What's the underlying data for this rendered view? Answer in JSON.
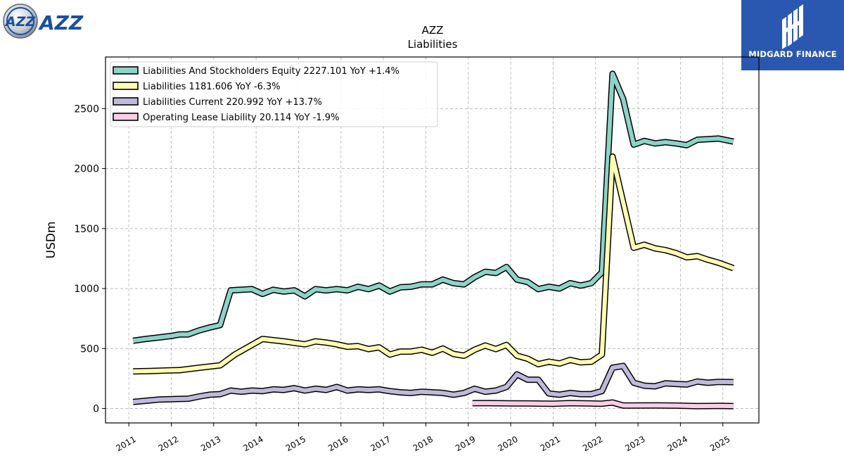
{
  "header": {
    "left_logo_text": "AZZ",
    "left_logo_emblem": "AZZ",
    "right_logo_text": "MIDGARD FINANCE"
  },
  "colors": {
    "equity": "#8dd3c7",
    "liabilities": "#ffffb3",
    "current": "#bebada",
    "lease": "#fccde5",
    "right_logo_bg": "#2a57b0",
    "left_logo_blue": "#1b4f9c"
  },
  "chart_data": {
    "type": "line",
    "title": "AZZ",
    "subtitle": "Liabilities",
    "ylabel": "USDm",
    "xlabel": "",
    "xlim": [
      2010.45,
      2025.85
    ],
    "ylim": [
      -120,
      2930
    ],
    "yticks": [
      0,
      500,
      1000,
      1500,
      2000,
      2500
    ],
    "xticks": [
      2011,
      2012,
      2013,
      2014,
      2015,
      2016,
      2017,
      2018,
      2019,
      2020,
      2021,
      2022,
      2023,
      2024,
      2025
    ],
    "grid": true,
    "legend_position": "top-left",
    "series": [
      {
        "name": "Liabilities And Stockholders Equity",
        "legend": "Liabilities And Stockholders Equity  2227.101 YoY +1.4%",
        "color_key": "equity",
        "points": [
          [
            2011.1,
            565
          ],
          [
            2011.4,
            580
          ],
          [
            2011.7,
            592
          ],
          [
            2012.0,
            605
          ],
          [
            2012.2,
            618
          ],
          [
            2012.4,
            618
          ],
          [
            2012.65,
            650
          ],
          [
            2012.9,
            675
          ],
          [
            2013.15,
            695
          ],
          [
            2013.4,
            985
          ],
          [
            2013.65,
            990
          ],
          [
            2013.9,
            995
          ],
          [
            2014.15,
            955
          ],
          [
            2014.4,
            990
          ],
          [
            2014.65,
            975
          ],
          [
            2014.9,
            985
          ],
          [
            2015.15,
            935
          ],
          [
            2015.4,
            995
          ],
          [
            2015.65,
            985
          ],
          [
            2015.9,
            995
          ],
          [
            2016.15,
            985
          ],
          [
            2016.4,
            1015
          ],
          [
            2016.65,
            995
          ],
          [
            2016.9,
            1025
          ],
          [
            2017.15,
            975
          ],
          [
            2017.4,
            1010
          ],
          [
            2017.65,
            1015
          ],
          [
            2017.9,
            1035
          ],
          [
            2018.15,
            1035
          ],
          [
            2018.4,
            1075
          ],
          [
            2018.65,
            1045
          ],
          [
            2018.9,
            1035
          ],
          [
            2019.15,
            1095
          ],
          [
            2019.4,
            1140
          ],
          [
            2019.65,
            1130
          ],
          [
            2019.9,
            1180
          ],
          [
            2020.15,
            1075
          ],
          [
            2020.4,
            1055
          ],
          [
            2020.65,
            995
          ],
          [
            2020.9,
            1015
          ],
          [
            2021.15,
            1000
          ],
          [
            2021.4,
            1045
          ],
          [
            2021.65,
            1025
          ],
          [
            2021.9,
            1045
          ],
          [
            2022.15,
            1135
          ],
          [
            2022.4,
            2790
          ],
          [
            2022.65,
            2580
          ],
          [
            2022.9,
            2200
          ],
          [
            2023.15,
            2230
          ],
          [
            2023.4,
            2210
          ],
          [
            2023.65,
            2220
          ],
          [
            2023.9,
            2210
          ],
          [
            2024.15,
            2195
          ],
          [
            2024.4,
            2240
          ],
          [
            2024.65,
            2245
          ],
          [
            2024.9,
            2250
          ],
          [
            2025.25,
            2225
          ]
        ]
      },
      {
        "name": "Liabilities",
        "legend": "Liabilities  1181.606 YoY -6.3%",
        "color_key": "liabilities",
        "points": [
          [
            2011.1,
            310
          ],
          [
            2011.5,
            313
          ],
          [
            2012.0,
            318
          ],
          [
            2012.2,
            320
          ],
          [
            2012.65,
            340
          ],
          [
            2013.15,
            360
          ],
          [
            2013.5,
            450
          ],
          [
            2014.15,
            580
          ],
          [
            2014.65,
            560
          ],
          [
            2015.15,
            535
          ],
          [
            2015.4,
            560
          ],
          [
            2015.65,
            550
          ],
          [
            2015.9,
            535
          ],
          [
            2016.15,
            515
          ],
          [
            2016.4,
            520
          ],
          [
            2016.65,
            495
          ],
          [
            2016.9,
            510
          ],
          [
            2017.15,
            450
          ],
          [
            2017.4,
            475
          ],
          [
            2017.65,
            475
          ],
          [
            2017.9,
            490
          ],
          [
            2018.15,
            465
          ],
          [
            2018.4,
            500
          ],
          [
            2018.65,
            455
          ],
          [
            2018.9,
            440
          ],
          [
            2019.15,
            490
          ],
          [
            2019.4,
            525
          ],
          [
            2019.65,
            495
          ],
          [
            2019.9,
            530
          ],
          [
            2020.15,
            440
          ],
          [
            2020.4,
            415
          ],
          [
            2020.65,
            370
          ],
          [
            2020.9,
            390
          ],
          [
            2021.15,
            375
          ],
          [
            2021.4,
            405
          ],
          [
            2021.65,
            385
          ],
          [
            2021.9,
            390
          ],
          [
            2022.15,
            450
          ],
          [
            2022.4,
            2100
          ],
          [
            2022.65,
            1720
          ],
          [
            2022.9,
            1340
          ],
          [
            2023.15,
            1365
          ],
          [
            2023.4,
            1335
          ],
          [
            2023.65,
            1320
          ],
          [
            2023.9,
            1295
          ],
          [
            2024.15,
            1260
          ],
          [
            2024.4,
            1270
          ],
          [
            2024.65,
            1240
          ],
          [
            2024.9,
            1215
          ],
          [
            2025.25,
            1170
          ]
        ]
      },
      {
        "name": "Liabilities Current",
        "legend": "Liabilities Current  220.992 YoY +13.7%",
        "color_key": "current",
        "points": [
          [
            2011.1,
            55
          ],
          [
            2011.4,
            65
          ],
          [
            2011.7,
            75
          ],
          [
            2012.0,
            78
          ],
          [
            2012.2,
            80
          ],
          [
            2012.4,
            82
          ],
          [
            2012.65,
            100
          ],
          [
            2012.9,
            115
          ],
          [
            2013.15,
            120
          ],
          [
            2013.4,
            150
          ],
          [
            2013.65,
            140
          ],
          [
            2013.9,
            150
          ],
          [
            2014.15,
            145
          ],
          [
            2014.4,
            160
          ],
          [
            2014.65,
            155
          ],
          [
            2014.9,
            170
          ],
          [
            2015.15,
            150
          ],
          [
            2015.4,
            165
          ],
          [
            2015.65,
            155
          ],
          [
            2015.9,
            180
          ],
          [
            2016.15,
            150
          ],
          [
            2016.4,
            160
          ],
          [
            2016.65,
            155
          ],
          [
            2016.9,
            160
          ],
          [
            2017.15,
            145
          ],
          [
            2017.4,
            135
          ],
          [
            2017.65,
            130
          ],
          [
            2017.9,
            140
          ],
          [
            2018.15,
            135
          ],
          [
            2018.4,
            130
          ],
          [
            2018.65,
            115
          ],
          [
            2018.9,
            130
          ],
          [
            2019.15,
            165
          ],
          [
            2019.4,
            140
          ],
          [
            2019.65,
            150
          ],
          [
            2019.9,
            180
          ],
          [
            2020.15,
            285
          ],
          [
            2020.4,
            240
          ],
          [
            2020.65,
            240
          ],
          [
            2020.9,
            125
          ],
          [
            2021.15,
            115
          ],
          [
            2021.4,
            130
          ],
          [
            2021.65,
            120
          ],
          [
            2021.9,
            120
          ],
          [
            2022.15,
            145
          ],
          [
            2022.4,
            340
          ],
          [
            2022.65,
            355
          ],
          [
            2022.9,
            215
          ],
          [
            2023.15,
            190
          ],
          [
            2023.4,
            185
          ],
          [
            2023.65,
            210
          ],
          [
            2023.9,
            205
          ],
          [
            2024.15,
            200
          ],
          [
            2024.4,
            225
          ],
          [
            2024.65,
            215
          ],
          [
            2024.9,
            222
          ],
          [
            2025.25,
            220
          ]
        ]
      },
      {
        "name": "Operating Lease Liability",
        "legend": "Operating Lease Liability  20.114 YoY -1.9%",
        "color_key": "lease",
        "points": [
          [
            2019.1,
            45
          ],
          [
            2019.5,
            45
          ],
          [
            2020.0,
            43
          ],
          [
            2020.5,
            42
          ],
          [
            2021.0,
            40
          ],
          [
            2021.4,
            45
          ],
          [
            2021.9,
            42
          ],
          [
            2022.15,
            40
          ],
          [
            2022.4,
            50
          ],
          [
            2022.65,
            25
          ],
          [
            2022.9,
            25
          ],
          [
            2023.4,
            26
          ],
          [
            2023.9,
            24
          ],
          [
            2024.4,
            20
          ],
          [
            2024.9,
            22
          ],
          [
            2025.25,
            20
          ]
        ]
      }
    ]
  }
}
